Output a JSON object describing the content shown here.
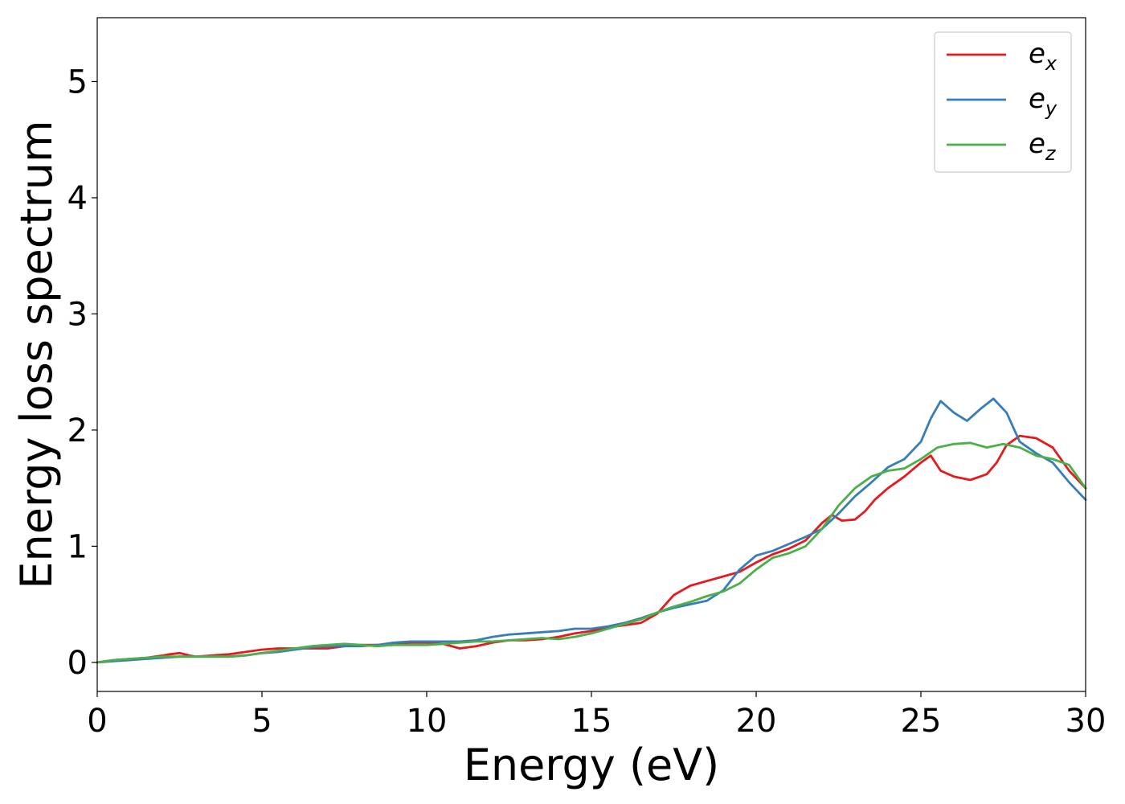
{
  "chart_data": {
    "type": "line",
    "title": "",
    "xlabel": "Energy (eV)",
    "ylabel": "Energy loss spectrum",
    "xlim": [
      0,
      30
    ],
    "ylim": [
      -0.25,
      5.55
    ],
    "xticks": [
      0,
      5,
      10,
      15,
      20,
      25,
      30
    ],
    "yticks": [
      0,
      1,
      2,
      3,
      4,
      5
    ],
    "grid": false,
    "legend_position": "top-right",
    "series": [
      {
        "name": "e_x",
        "label_base": "e",
        "label_sub": "x",
        "color": "#e41a1c",
        "x": [
          0,
          0.5,
          1,
          1.5,
          2,
          2.2,
          2.5,
          2.8,
          3,
          3.5,
          4,
          4.5,
          5,
          5.5,
          6,
          6.5,
          7,
          7.5,
          8,
          8.5,
          9,
          9.5,
          10,
          10.5,
          11,
          11.5,
          12,
          12.5,
          13,
          13.5,
          14,
          14.5,
          15,
          15.5,
          16,
          16.5,
          17,
          17.5,
          18,
          18.5,
          19,
          19.5,
          20,
          20.5,
          21,
          21.5,
          22,
          22.3,
          22.6,
          23,
          23.3,
          23.6,
          24,
          24.5,
          25,
          25.3,
          25.6,
          26,
          26.5,
          27,
          27.3,
          27.6,
          28,
          28.5,
          29,
          29.5,
          30
        ],
        "y": [
          0,
          0.02,
          0.03,
          0.04,
          0.06,
          0.07,
          0.08,
          0.06,
          0.05,
          0.06,
          0.07,
          0.09,
          0.11,
          0.12,
          0.12,
          0.12,
          0.12,
          0.14,
          0.15,
          0.15,
          0.16,
          0.17,
          0.17,
          0.16,
          0.12,
          0.14,
          0.17,
          0.19,
          0.19,
          0.2,
          0.22,
          0.25,
          0.27,
          0.3,
          0.32,
          0.34,
          0.42,
          0.58,
          0.66,
          0.7,
          0.74,
          0.78,
          0.86,
          0.93,
          0.98,
          1.05,
          1.2,
          1.27,
          1.22,
          1.23,
          1.3,
          1.4,
          1.5,
          1.6,
          1.72,
          1.78,
          1.65,
          1.6,
          1.57,
          1.62,
          1.72,
          1.87,
          1.95,
          1.93,
          1.85,
          1.65,
          1.5
        ]
      },
      {
        "name": "e_y",
        "label_base": "e",
        "label_sub": "y",
        "color": "#377eb8",
        "x": [
          0,
          0.5,
          1,
          1.5,
          2,
          2.5,
          3,
          3.5,
          4,
          4.5,
          5,
          5.5,
          6,
          6.5,
          7,
          7.5,
          8,
          8.5,
          9,
          9.5,
          10,
          10.5,
          11,
          11.5,
          12,
          12.5,
          13,
          13.5,
          14,
          14.5,
          15,
          15.5,
          16,
          16.5,
          17,
          17.5,
          18,
          18.5,
          19,
          19.5,
          20,
          20.5,
          21,
          21.5,
          22,
          22.5,
          23,
          23.5,
          24,
          24.5,
          25,
          25.3,
          25.6,
          26,
          26.4,
          26.8,
          27.2,
          27.6,
          28,
          28.5,
          29,
          29.5,
          30
        ],
        "y": [
          0,
          0.01,
          0.02,
          0.03,
          0.04,
          0.05,
          0.05,
          0.05,
          0.05,
          0.06,
          0.08,
          0.09,
          0.11,
          0.13,
          0.14,
          0.14,
          0.14,
          0.15,
          0.17,
          0.18,
          0.18,
          0.18,
          0.18,
          0.19,
          0.22,
          0.24,
          0.25,
          0.26,
          0.27,
          0.29,
          0.29,
          0.31,
          0.34,
          0.38,
          0.43,
          0.47,
          0.5,
          0.53,
          0.62,
          0.8,
          0.92,
          0.96,
          1.02,
          1.08,
          1.15,
          1.28,
          1.43,
          1.55,
          1.68,
          1.75,
          1.9,
          2.1,
          2.25,
          2.15,
          2.08,
          2.18,
          2.27,
          2.15,
          1.9,
          1.8,
          1.72,
          1.55,
          1.4
        ]
      },
      {
        "name": "e_z",
        "label_base": "e",
        "label_sub": "z",
        "color": "#4daf4a",
        "x": [
          0,
          0.5,
          1,
          1.5,
          2,
          2.5,
          3,
          3.5,
          4,
          4.5,
          5,
          5.5,
          6,
          6.5,
          7,
          7.5,
          8,
          8.5,
          9,
          9.5,
          10,
          10.5,
          11,
          11.5,
          12,
          12.5,
          13,
          13.5,
          14,
          14.5,
          15,
          15.5,
          16,
          16.5,
          17,
          17.5,
          18,
          18.5,
          19,
          19.5,
          20,
          20.5,
          21,
          21.5,
          22,
          22.5,
          23,
          23.5,
          24,
          24.5,
          25,
          25.5,
          26,
          26.5,
          27,
          27.5,
          28,
          28.5,
          29,
          29.5,
          30
        ],
        "y": [
          0,
          0.02,
          0.03,
          0.04,
          0.05,
          0.05,
          0.05,
          0.05,
          0.05,
          0.06,
          0.08,
          0.1,
          0.12,
          0.14,
          0.15,
          0.16,
          0.15,
          0.14,
          0.15,
          0.15,
          0.15,
          0.16,
          0.17,
          0.18,
          0.18,
          0.19,
          0.2,
          0.21,
          0.2,
          0.22,
          0.25,
          0.29,
          0.33,
          0.37,
          0.43,
          0.48,
          0.52,
          0.57,
          0.61,
          0.68,
          0.8,
          0.9,
          0.94,
          1.0,
          1.15,
          1.35,
          1.5,
          1.6,
          1.65,
          1.67,
          1.75,
          1.85,
          1.88,
          1.89,
          1.85,
          1.88,
          1.85,
          1.78,
          1.75,
          1.7,
          1.5
        ]
      }
    ]
  }
}
